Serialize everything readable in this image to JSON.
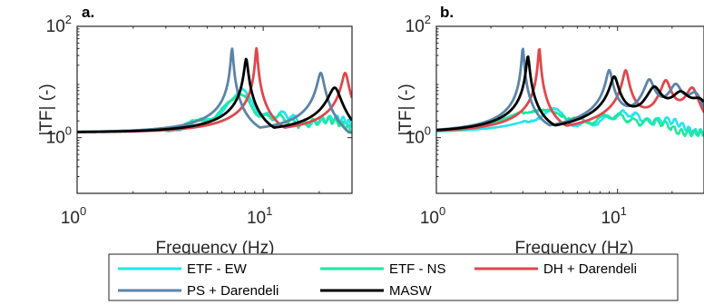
{
  "chart_data": [
    {
      "type": "line",
      "panel_label": "a.",
      "xlabel": "Frequency (Hz)",
      "ylabel": "|TF| (-)",
      "xscale": "log",
      "yscale": "log",
      "xlim": [
        1,
        30
      ],
      "ylim": [
        0.1,
        100
      ],
      "xticks": [
        {
          "base": "10",
          "exp": "0"
        },
        {
          "base": "10",
          "exp": "1"
        }
      ],
      "yticks": [
        {
          "base": "10",
          "exp": "0"
        },
        {
          "base": "10",
          "exp": "2"
        }
      ],
      "series": [
        {
          "name": "ETF - EW",
          "color": "#22e5f0",
          "noise": true,
          "peaks": [
            {
              "f": 7.7,
              "amp": 8
            },
            {
              "f": 13.0,
              "amp": 2.2
            },
            {
              "f": 26.0,
              "amp": 2.0
            }
          ]
        },
        {
          "name": "ETF - NS",
          "color": "#1ee8a0",
          "noise": true,
          "peaks": [
            {
              "f": 7.5,
              "amp": 6
            },
            {
              "f": 12.0,
              "amp": 1.9
            },
            {
              "f": 24.0,
              "amp": 1.8
            }
          ]
        },
        {
          "name": "DH + Darendeli",
          "color": "#e0474c",
          "peaks": [
            {
              "f": 9.2,
              "amp": 42
            },
            {
              "f": 27.6,
              "amp": 15
            }
          ]
        },
        {
          "name": "PS + Darendeli",
          "color": "#5b84a9",
          "peaks": [
            {
              "f": 6.8,
              "amp": 42
            },
            {
              "f": 20.4,
              "amp": 15
            }
          ]
        },
        {
          "name": "MASW",
          "color": "#000000",
          "peaks": [
            {
              "f": 8.1,
              "amp": 27
            },
            {
              "f": 24.3,
              "amp": 8
            }
          ]
        }
      ]
    },
    {
      "type": "line",
      "panel_label": "b.",
      "xlabel": "Frequency (Hz)",
      "ylabel": "|TF| (-)",
      "xscale": "log",
      "yscale": "log",
      "xlim": [
        1,
        30
      ],
      "ylim": [
        0.1,
        100
      ],
      "xticks": [
        {
          "base": "10",
          "exp": "0"
        },
        {
          "base": "10",
          "exp": "1"
        }
      ],
      "yticks": [
        {
          "base": "10",
          "exp": "0"
        },
        {
          "base": "10",
          "exp": "2"
        }
      ],
      "series": [
        {
          "name": "ETF - EW",
          "color": "#22e5f0",
          "noise": true,
          "peaks": [
            {
              "f": 4.5,
              "amp": 2.6
            },
            {
              "f": 11.5,
              "amp": 2.2
            },
            {
              "f": 20.0,
              "amp": 1.8
            }
          ]
        },
        {
          "name": "ETF - NS",
          "color": "#1ee8a0",
          "noise": true,
          "peaks": [
            {
              "f": 3.4,
              "amp": 2.4
            },
            {
              "f": 5.0,
              "amp": 2.1
            },
            {
              "f": 10.0,
              "amp": 1.9
            },
            {
              "f": 17.0,
              "amp": 1.7
            }
          ]
        },
        {
          "name": "DH + Darendeli",
          "color": "#e0474c",
          "peaks": [
            {
              "f": 3.7,
              "amp": 42
            },
            {
              "f": 11.1,
              "amp": 16
            },
            {
              "f": 18.5,
              "amp": 10
            },
            {
              "f": 25.9,
              "amp": 8
            }
          ]
        },
        {
          "name": "PS + Darendeli",
          "color": "#5b84a9",
          "peaks": [
            {
              "f": 3.0,
              "amp": 42
            },
            {
              "f": 9.0,
              "amp": 16
            },
            {
              "f": 15.0,
              "amp": 10
            },
            {
              "f": 21.0,
              "amp": 8
            },
            {
              "f": 27.0,
              "amp": 6
            }
          ]
        },
        {
          "name": "MASW",
          "color": "#000000",
          "peaks": [
            {
              "f": 3.2,
              "amp": 30
            },
            {
              "f": 9.6,
              "amp": 12
            },
            {
              "f": 16.0,
              "amp": 7
            },
            {
              "f": 22.4,
              "amp": 5.5
            },
            {
              "f": 28.8,
              "amp": 4.5
            }
          ]
        }
      ]
    }
  ],
  "legend": {
    "placement": "bottom",
    "entries": [
      {
        "label": "ETF - EW",
        "color": "#22e5f0"
      },
      {
        "label": "ETF - NS",
        "color": "#1ee8a0"
      },
      {
        "label": "DH + Darendeli",
        "color": "#e0474c"
      },
      {
        "label": "PS + Darendeli",
        "color": "#5b84a9"
      },
      {
        "label": "MASW",
        "color": "#000000"
      }
    ]
  }
}
